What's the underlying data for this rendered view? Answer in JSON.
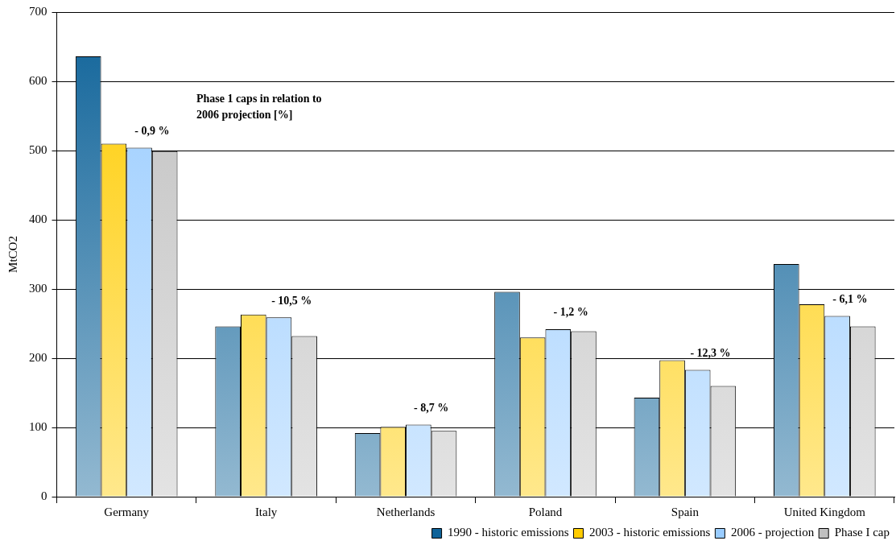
{
  "chart_data": {
    "type": "bar",
    "ylabel": "MtCO2",
    "categories": [
      "Germany",
      "Italy",
      "Netherlands",
      "Poland",
      "Spain",
      "United Kingdom"
    ],
    "series": [
      {
        "name": "1990 - historic emissions",
        "color": "#0f6399",
        "values": [
          636,
          246,
          92,
          296,
          143,
          336
        ]
      },
      {
        "name": "2003 - historic emissions",
        "color": "#ffcc00",
        "values": [
          510,
          263,
          101,
          230,
          197,
          278
        ]
      },
      {
        "name": "2006 - projection",
        "color": "#99ccff",
        "values": [
          504,
          259,
          104,
          242,
          183,
          261
        ]
      },
      {
        "name": "Phase I cap",
        "color": "#c0c0c0",
        "values": [
          499,
          232,
          95,
          239,
          160,
          246
        ]
      }
    ],
    "ylim": [
      0,
      700
    ],
    "yticks": [
      0,
      100,
      200,
      300,
      400,
      500,
      600,
      700
    ],
    "grid": "y",
    "legend": "bottom",
    "annotations": [
      "Phase 1 caps in relation to\n2006 projection [%]",
      {
        "text": "- 0,9 %",
        "x": "Germany",
        "y": 504
      },
      {
        "text": "- 10,5 %",
        "x": "Italy",
        "y": 259
      },
      {
        "text": "- 8,7 %",
        "x": "Netherlands",
        "y": 104
      },
      {
        "text": "- 1,2 %",
        "x": "Poland",
        "y": 242
      },
      {
        "text": "- 12,3 %",
        "x": "Spain",
        "y": 183
      },
      {
        "text": "- 6,1 %",
        "x": "United Kingdom",
        "y": 261
      }
    ]
  }
}
